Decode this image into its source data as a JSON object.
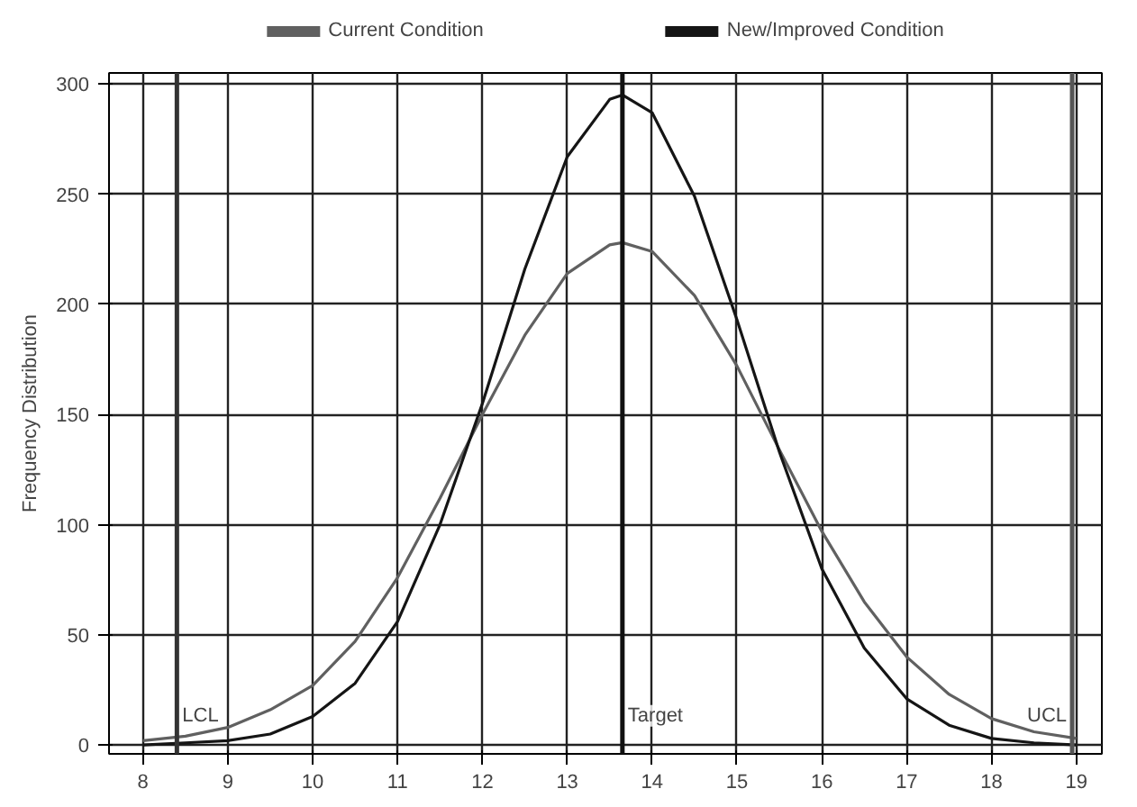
{
  "chart_data": {
    "type": "line",
    "ylabel": "Frequency Distribution",
    "x": [
      8,
      8.5,
      9,
      9.5,
      10,
      10.5,
      11,
      11.5,
      12,
      12.5,
      13,
      13.5,
      13.65,
      14,
      14.5,
      15,
      15.5,
      16,
      16.5,
      17,
      17.5,
      18,
      18.5,
      19
    ],
    "series": [
      {
        "name": "Current Condition",
        "color": "#606060",
        "values": [
          2,
          4,
          8,
          16,
          27,
          47,
          76,
          112,
          150,
          186,
          214,
          227,
          228,
          224,
          204,
          172,
          134,
          97,
          65,
          40,
          23,
          12,
          6,
          3
        ]
      },
      {
        "name": "New/Improved Condition",
        "color": "#151515",
        "values": [
          0,
          1,
          2,
          5,
          13,
          28,
          56,
          100,
          155,
          216,
          267,
          293,
          295,
          287,
          249,
          193,
          133,
          80,
          44,
          21,
          9,
          3,
          1,
          0
        ]
      }
    ],
    "xlim": [
      7.6,
      19.3
    ],
    "ylim": [
      -4,
      305
    ],
    "xticks": [
      8,
      9,
      10,
      11,
      12,
      13,
      14,
      15,
      16,
      17,
      18,
      19
    ],
    "yticks": [
      0,
      50,
      100,
      150,
      200,
      250,
      300
    ],
    "ref_lines": [
      {
        "axis": "x",
        "value": 8.4,
        "label": "LCL",
        "color": "#333333"
      },
      {
        "axis": "x",
        "value": 13.65,
        "label": "Target",
        "color": "#111111"
      },
      {
        "axis": "x",
        "value": 18.95,
        "label": "UCL",
        "color": "#555555"
      }
    ],
    "grid": true,
    "legend": "top",
    "marker": "none",
    "line_style": "solid"
  }
}
